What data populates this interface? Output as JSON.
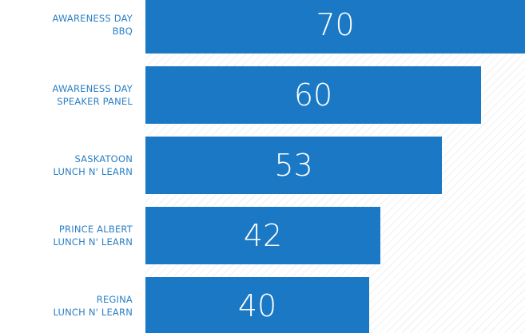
{
  "chart_data": {
    "type": "bar",
    "orientation": "horizontal",
    "categories": [
      "AWARENESS DAY\nBBQ",
      "AWARENESS DAY\nSPEAKER PANEL",
      "SASKATOON\nLUNCH N' LEARN",
      "PRINCE ALBERT\nLUNCH N' LEARN",
      "REGINA\nLUNCH N' LEARN"
    ],
    "values": [
      70,
      60,
      53,
      42,
      40
    ],
    "color": "#1b78c4"
  }
}
